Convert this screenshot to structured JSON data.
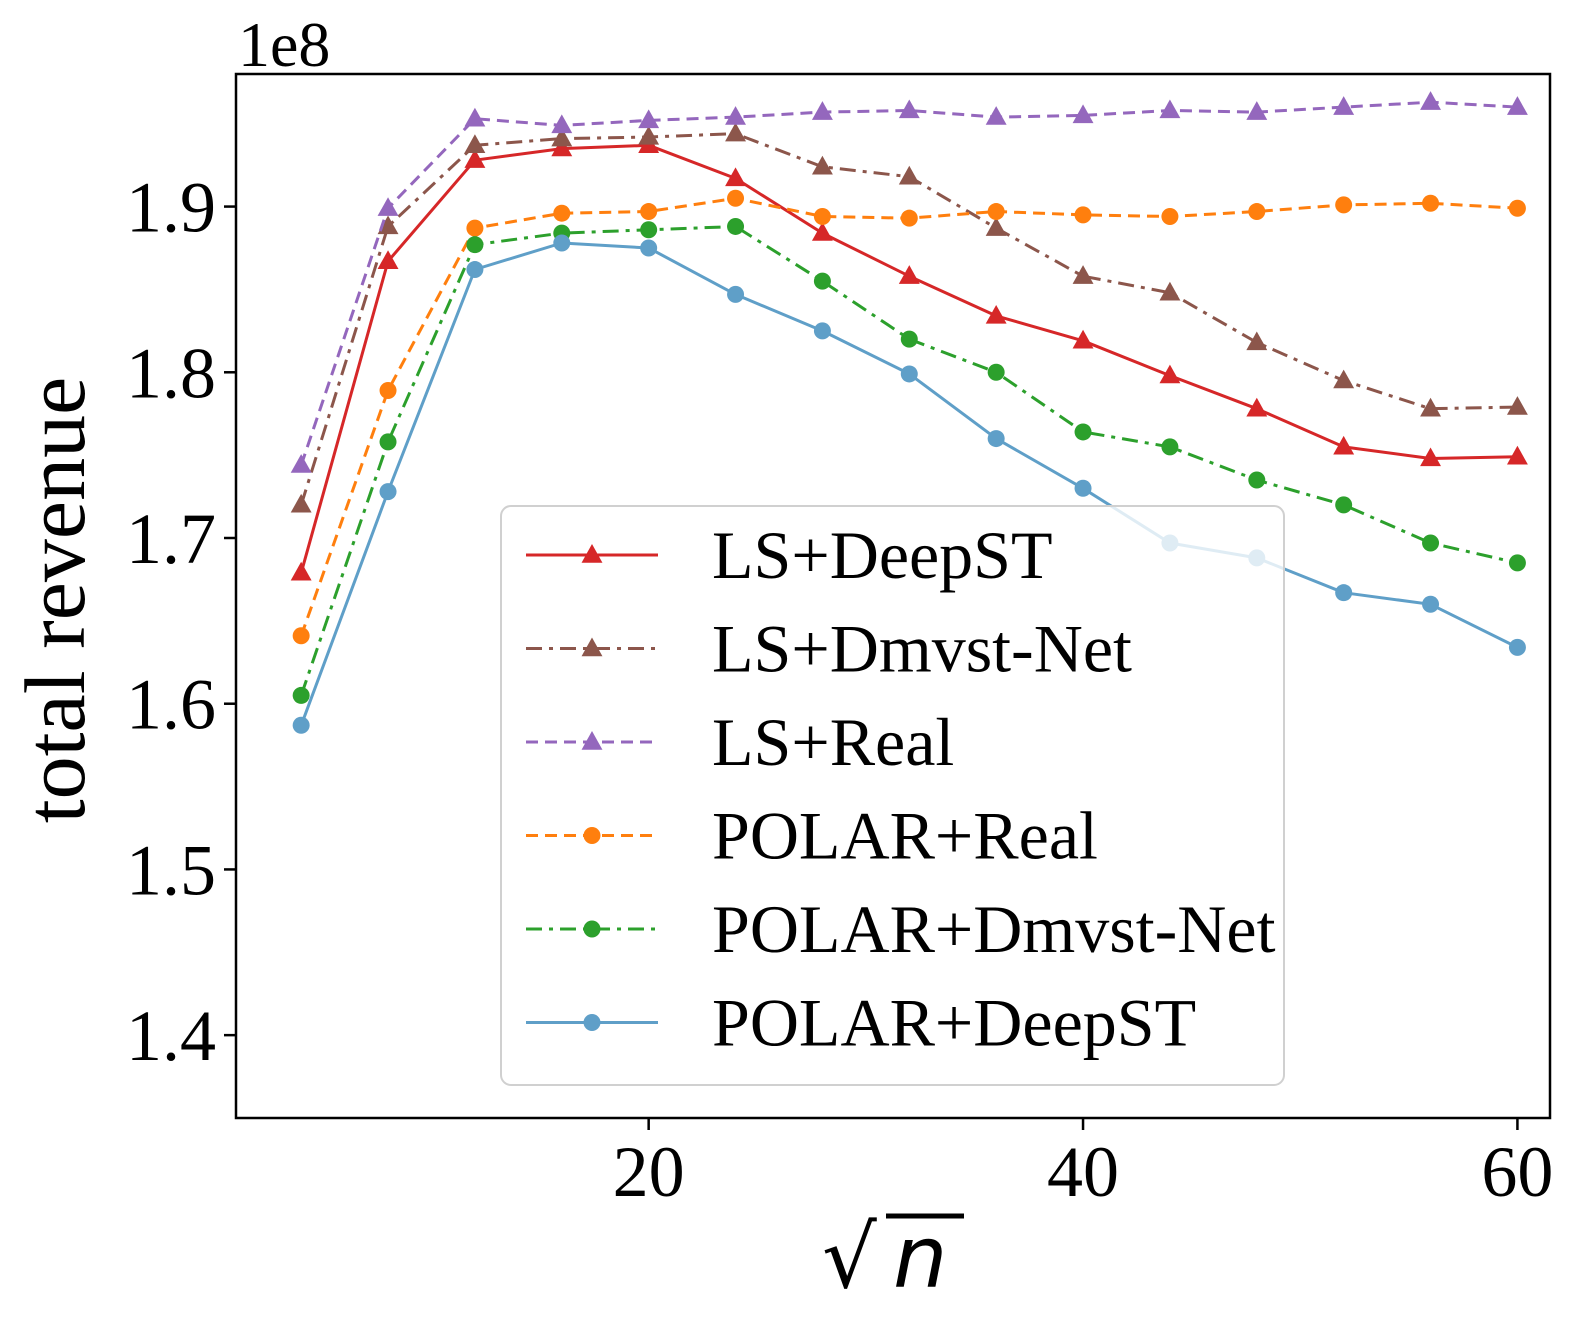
{
  "chart_data": {
    "type": "line",
    "title": "",
    "multiplier_label": "1e8",
    "xlabel": {
      "radical": "√",
      "variable": "n"
    },
    "ylabel": "total revenue",
    "xlim": [
      1,
      61.5
    ],
    "ylim": [
      1.35,
      1.98
    ],
    "xticks": [
      {
        "value": 20,
        "label": "20"
      },
      {
        "value": 40,
        "label": "40"
      },
      {
        "value": 60,
        "label": "60"
      }
    ],
    "yticks": [
      {
        "value": 1.4,
        "label": "1.4"
      },
      {
        "value": 1.5,
        "label": "1.5"
      },
      {
        "value": 1.6,
        "label": "1.6"
      },
      {
        "value": 1.7,
        "label": "1.7"
      },
      {
        "value": 1.8,
        "label": "1.8"
      },
      {
        "value": 1.9,
        "label": "1.9"
      }
    ],
    "grid": false,
    "legend_position": "lower-center",
    "x": [
      4,
      8,
      12,
      16,
      20,
      24,
      28,
      32,
      36,
      40,
      44,
      48,
      52,
      56,
      60
    ],
    "series": [
      {
        "name": "LS+DeepST",
        "color": "#d62728",
        "marker": "triangle",
        "dash": "solid",
        "values": [
          1.679,
          1.867,
          1.928,
          1.935,
          1.937,
          1.917,
          1.884,
          1.858,
          1.834,
          1.819,
          1.798,
          1.778,
          1.755,
          1.748,
          1.749
        ]
      },
      {
        "name": "LS+Dmvst-Net",
        "color": "#8c564b",
        "marker": "triangle",
        "dash": "dashdot",
        "values": [
          1.72,
          1.888,
          1.937,
          1.941,
          1.942,
          1.944,
          1.924,
          1.918,
          1.887,
          1.858,
          1.848,
          1.818,
          1.795,
          1.778,
          1.779
        ]
      },
      {
        "name": "LS+Real",
        "color": "#9467bd",
        "marker": "triangle",
        "dash": "dashed",
        "values": [
          1.744,
          1.899,
          1.953,
          1.949,
          1.952,
          1.954,
          1.957,
          1.958,
          1.954,
          1.955,
          1.958,
          1.957,
          1.96,
          1.963,
          1.96
        ]
      },
      {
        "name": "POLAR+Real",
        "color": "#ff7f0e",
        "marker": "circle",
        "dash": "dashed",
        "values": [
          1.641,
          1.789,
          1.887,
          1.896,
          1.897,
          1.905,
          1.894,
          1.893,
          1.897,
          1.895,
          1.894,
          1.897,
          1.901,
          1.902,
          1.899
        ]
      },
      {
        "name": "POLAR+Dmvst-Net",
        "color": "#2ca02c",
        "marker": "circle",
        "dash": "dashdot",
        "values": [
          1.605,
          1.758,
          1.877,
          1.884,
          1.886,
          1.888,
          1.855,
          1.82,
          1.8,
          1.764,
          1.755,
          1.735,
          1.72,
          1.697,
          1.685
        ]
      },
      {
        "name": "POLAR+DeepST",
        "color": "#5f9fc8",
        "marker": "circle",
        "dash": "solid",
        "values": [
          1.587,
          1.728,
          1.862,
          1.878,
          1.875,
          1.847,
          1.825,
          1.799,
          1.76,
          1.73,
          1.697,
          1.688,
          1.667,
          1.66,
          1.634
        ]
      }
    ]
  }
}
